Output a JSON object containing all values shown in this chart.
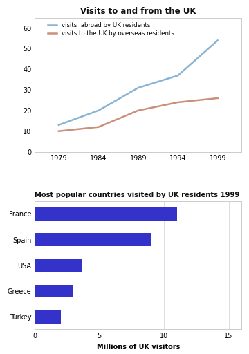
{
  "line_chart": {
    "title": "Visits to and from the UK",
    "years": [
      1979,
      1984,
      1989,
      1994,
      1999
    ],
    "abroad": [
      13,
      20,
      31,
      37,
      54
    ],
    "overseas": [
      10,
      12,
      20,
      24,
      26
    ],
    "abroad_color": "#8ab4d4",
    "overseas_color": "#c9907a",
    "abroad_label": "visits  abroad by UK residents",
    "overseas_label": "visits to the UK by overseas residents",
    "ylim": [
      0,
      65
    ],
    "yticks": [
      0,
      10,
      20,
      30,
      40,
      50,
      60
    ],
    "background": "#ffffff"
  },
  "bar_chart": {
    "title": "Most popular countries visited by UK residents 1999",
    "countries": [
      "Turkey",
      "Greece",
      "USA",
      "Spain",
      "France"
    ],
    "values": [
      2,
      3,
      3.7,
      9,
      11
    ],
    "bar_color": "#3333cc",
    "xlabel": "Millions of UK visitors",
    "xlim": [
      0,
      16
    ],
    "xticks": [
      0,
      5,
      10,
      15
    ],
    "background": "#ffffff"
  },
  "fig_background": "#ffffff"
}
